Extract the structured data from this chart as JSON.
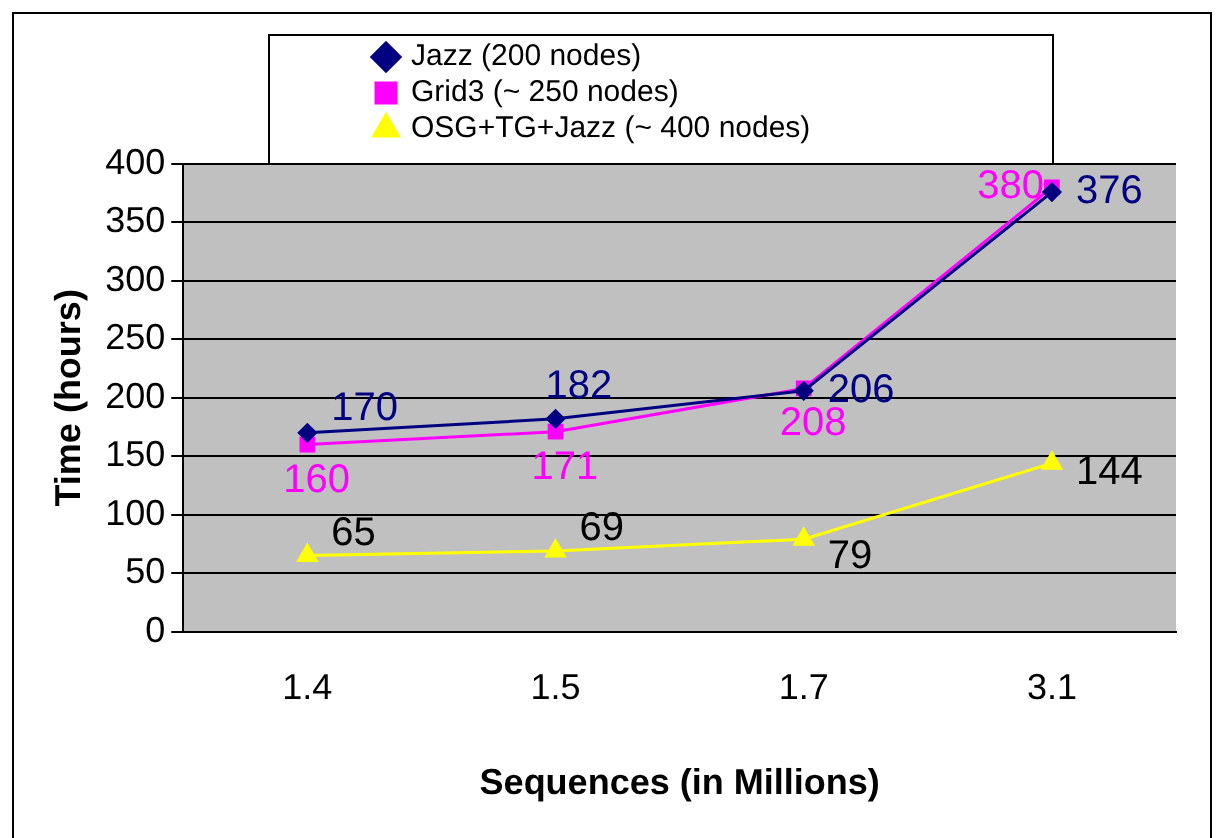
{
  "chart_data": {
    "type": "line",
    "xlabel": "Sequences (in Millions)",
    "ylabel": "Time (hours)",
    "categories": [
      "1.4",
      "1.5",
      "1.7",
      "3.1"
    ],
    "series": [
      {
        "name": "Jazz (200 nodes)",
        "color": "#000080",
        "marker": "diamond",
        "values": [
          170,
          182,
          206,
          376
        ]
      },
      {
        "name": "Grid3 (~ 250 nodes)",
        "color": "#ff00ff",
        "marker": "square",
        "values": [
          160,
          171,
          208,
          380
        ]
      },
      {
        "name": "OSG+TG+Jazz (~ 400 nodes)",
        "color": "#ffff00",
        "marker": "triangle",
        "values": [
          65,
          69,
          79,
          144
        ]
      }
    ],
    "ylim": [
      0,
      400
    ],
    "yticks": [
      0,
      50,
      100,
      150,
      200,
      250,
      300,
      350,
      400
    ],
    "grid": "y",
    "legend": "top",
    "data_labels": true
  }
}
